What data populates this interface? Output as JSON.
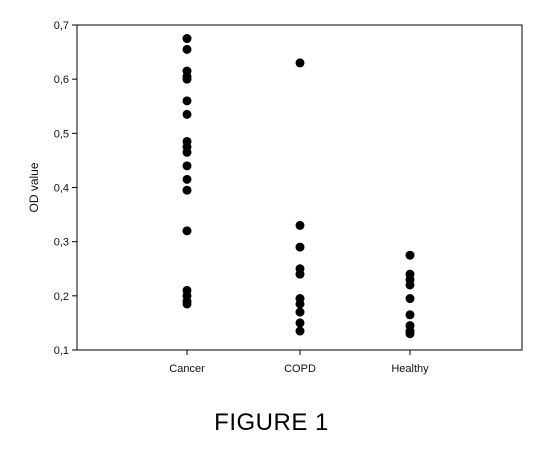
{
  "chart_data": {
    "type": "scatter",
    "ylabel": "OD value",
    "xlabel": "",
    "categories": [
      "Cancer",
      "COPD",
      "Healthy"
    ],
    "ylim": [
      0.1,
      0.7
    ],
    "yticks": [
      "0,1",
      "0,2",
      "0,3",
      "0,4",
      "0,5",
      "0,6",
      "0,7"
    ],
    "grid": false,
    "legend": "none",
    "marker_color": "#000000",
    "points": [
      {
        "category": "Cancer",
        "values": [
          0.675,
          0.655,
          0.615,
          0.605,
          0.6,
          0.56,
          0.535,
          0.485,
          0.475,
          0.465,
          0.44,
          0.415,
          0.395,
          0.32,
          0.21,
          0.2,
          0.19,
          0.185
        ]
      },
      {
        "category": "COPD",
        "values": [
          0.63,
          0.33,
          0.29,
          0.25,
          0.24,
          0.195,
          0.185,
          0.17,
          0.15,
          0.135
        ]
      },
      {
        "category": "Healthy",
        "values": [
          0.275,
          0.24,
          0.23,
          0.22,
          0.195,
          0.165,
          0.145,
          0.135,
          0.13
        ]
      }
    ]
  },
  "figure_caption": "FIGURE 1"
}
